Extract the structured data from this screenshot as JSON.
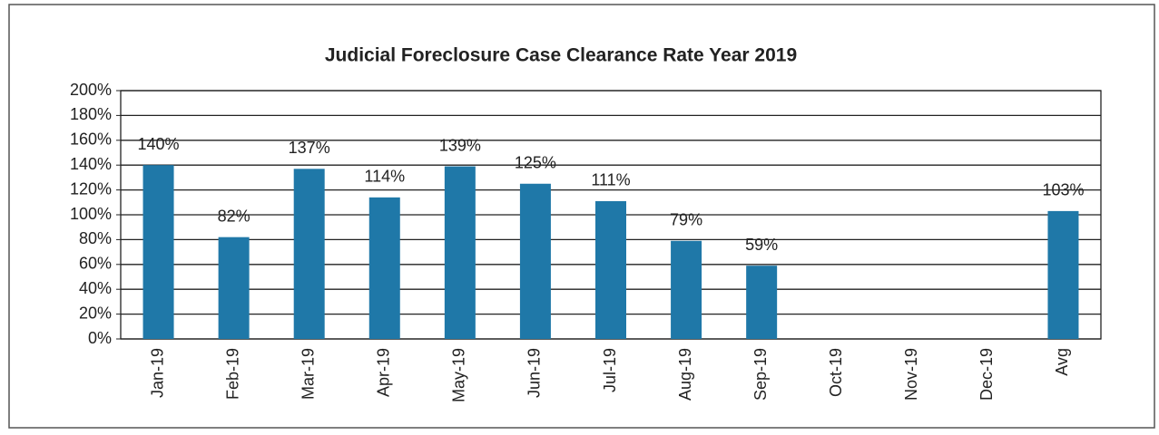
{
  "chart_data": {
    "type": "bar",
    "title": "Judicial Foreclosure Case Clearance Rate Year 2019",
    "categories": [
      "Jan-19",
      "Feb-19",
      "Mar-19",
      "Apr-19",
      "May-19",
      "Jun-19",
      "Jul-19",
      "Aug-19",
      "Sep-19",
      "Oct-19",
      "Nov-19",
      "Dec-19",
      "Avg"
    ],
    "values": [
      140,
      82,
      137,
      114,
      139,
      125,
      111,
      79,
      59,
      null,
      null,
      null,
      103
    ],
    "value_labels": [
      "140%",
      "82%",
      "137%",
      "114%",
      "139%",
      "125%",
      "111%",
      "79%",
      "59%",
      null,
      null,
      null,
      "103%"
    ],
    "color": "#1f78a8",
    "ylim": [
      0,
      200
    ],
    "yticks": [
      {
        "value": 0,
        "label": "0%"
      },
      {
        "value": 20,
        "label": "20%"
      },
      {
        "value": 40,
        "label": "40%"
      },
      {
        "value": 60,
        "label": "60%"
      },
      {
        "value": 80,
        "label": "80%"
      },
      {
        "value": 100,
        "label": "100%"
      },
      {
        "value": 120,
        "label": "120%"
      },
      {
        "value": 140,
        "label": "140%"
      },
      {
        "value": 160,
        "label": "160%"
      },
      {
        "value": 180,
        "label": "180%"
      },
      {
        "value": 200,
        "label": "200%"
      }
    ],
    "grid": true
  }
}
